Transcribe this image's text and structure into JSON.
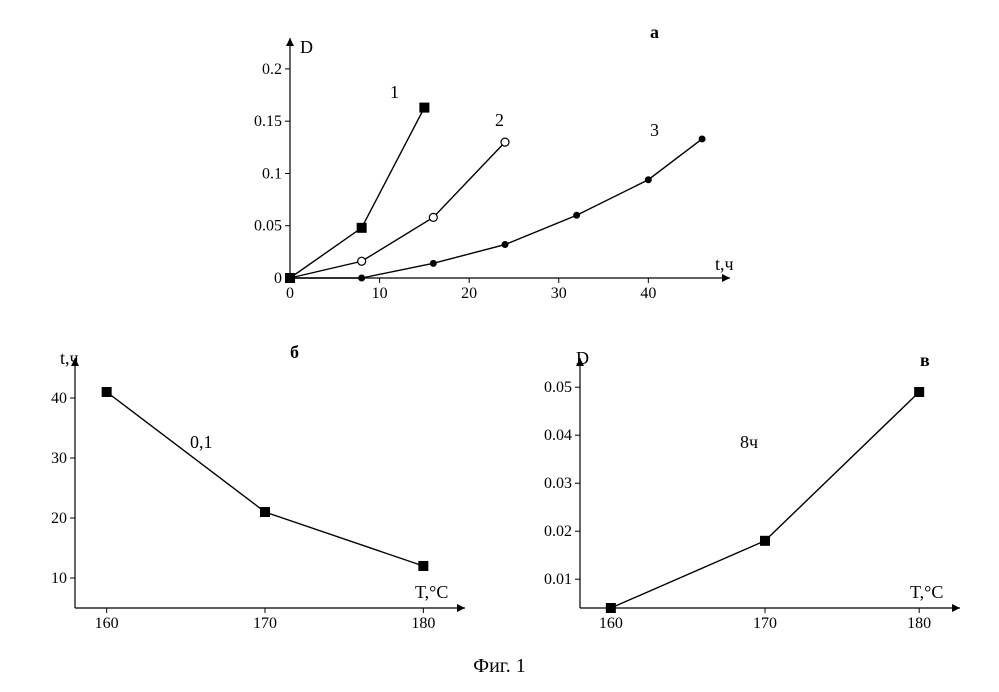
{
  "figure_caption": "Фиг. 1",
  "caption_fontsize": 20,
  "background_color": "#ffffff",
  "axis_color": "#000000",
  "chart_a": {
    "type": "line",
    "panel_label": "а",
    "xlabel": "t,ч",
    "ylabel": "D",
    "label_fontsize": 18,
    "panel_label_fontsize": 18,
    "xlim": [
      0,
      48
    ],
    "ylim": [
      0,
      0.22
    ],
    "xticks": [
      0,
      10,
      20,
      30,
      40
    ],
    "yticks": [
      0,
      0.05,
      0.1,
      0.15,
      0.2
    ],
    "xtick_labels": [
      "0",
      "10",
      "20",
      "30",
      "40"
    ],
    "ytick_labels": [
      "0",
      "0.05",
      "0.1",
      "0.15",
      "0.2"
    ],
    "tick_fontsize": 16,
    "series": [
      {
        "name": "1",
        "label": "1",
        "marker": "square-filled",
        "marker_size": 5,
        "color": "#000000",
        "points": [
          [
            0,
            0
          ],
          [
            8,
            0.048
          ],
          [
            15,
            0.163
          ]
        ]
      },
      {
        "name": "2",
        "label": "2",
        "marker": "circle-open",
        "marker_size": 4,
        "color": "#000000",
        "points": [
          [
            0,
            0
          ],
          [
            8,
            0.016
          ],
          [
            16,
            0.058
          ],
          [
            24,
            0.13
          ]
        ]
      },
      {
        "name": "3",
        "label": "3",
        "marker": "circle-filled",
        "marker_size": 3.5,
        "color": "#000000",
        "points": [
          [
            0,
            0
          ],
          [
            8,
            0.0
          ],
          [
            16,
            0.014
          ],
          [
            24,
            0.032
          ],
          [
            32,
            0.06
          ],
          [
            40,
            0.094
          ],
          [
            46,
            0.133
          ]
        ]
      }
    ]
  },
  "chart_b": {
    "type": "line",
    "panel_label": "б",
    "inner_label": "0,1",
    "xlabel": "T,°C",
    "ylabel": "t,ч",
    "label_fontsize": 18,
    "panel_label_fontsize": 18,
    "xlim": [
      158,
      182
    ],
    "ylim": [
      5,
      45
    ],
    "xticks": [
      160,
      170,
      180
    ],
    "yticks": [
      10,
      20,
      30,
      40
    ],
    "xtick_labels": [
      "160",
      "170",
      "180"
    ],
    "ytick_labels": [
      "10",
      "20",
      "30",
      "40"
    ],
    "tick_fontsize": 16,
    "series": [
      {
        "name": "b1",
        "marker": "square-filled",
        "marker_size": 5,
        "color": "#000000",
        "points": [
          [
            160,
            41
          ],
          [
            170,
            21
          ],
          [
            180,
            12
          ]
        ]
      }
    ]
  },
  "chart_c": {
    "type": "line",
    "panel_label": "в",
    "inner_label": "8ч",
    "xlabel": "T,°C",
    "ylabel": "D",
    "label_fontsize": 18,
    "panel_label_fontsize": 18,
    "xlim": [
      158,
      182
    ],
    "ylim": [
      0.004,
      0.054
    ],
    "xticks": [
      160,
      170,
      180
    ],
    "yticks": [
      0.01,
      0.02,
      0.03,
      0.04,
      0.05
    ],
    "xtick_labels": [
      "160",
      "170",
      "180"
    ],
    "ytick_labels": [
      "0.01",
      "0.02",
      "0.03",
      "0.04",
      "0.05"
    ],
    "tick_fontsize": 16,
    "series": [
      {
        "name": "c1",
        "marker": "square-filled",
        "marker_size": 5,
        "color": "#000000",
        "points": [
          [
            160,
            0.004
          ],
          [
            170,
            0.018
          ],
          [
            180,
            0.049
          ]
        ]
      }
    ]
  }
}
